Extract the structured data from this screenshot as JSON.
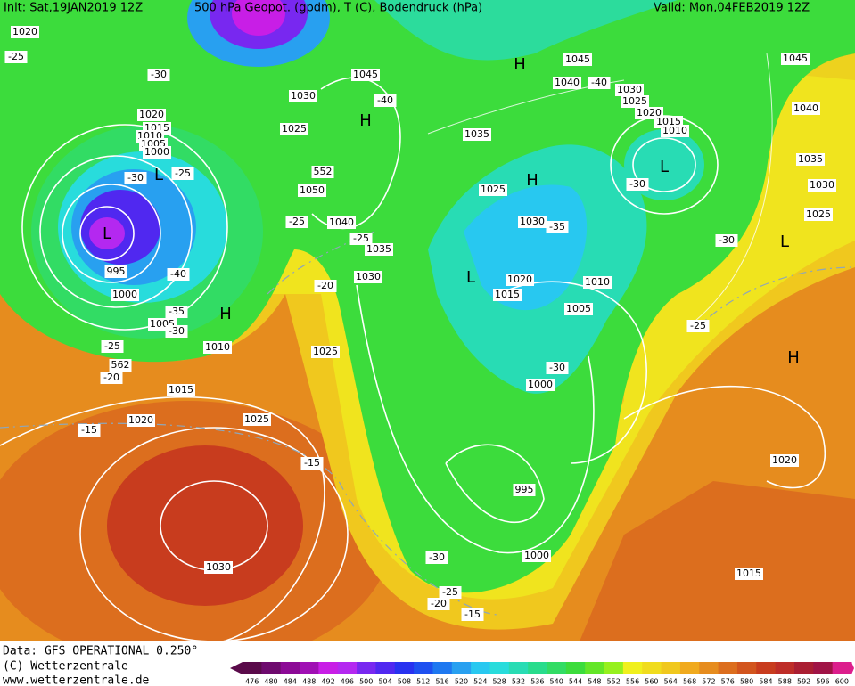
{
  "header": {
    "init": "Init: Sat,19JAN2019 12Z",
    "title": "500 hPa Geopot. (gpdm), T (C), Bodendruck (hPa)",
    "valid": "Valid: Mon,04FEB2019 12Z"
  },
  "footer": {
    "data": "Data: GFS OPERATIONAL 0.250°",
    "copyright": "(C) Wetterzentrale",
    "url": "www.wetterzentrale.de"
  },
  "colorbar": {
    "values": [
      476,
      480,
      484,
      488,
      492,
      496,
      500,
      504,
      508,
      512,
      516,
      520,
      524,
      528,
      532,
      536,
      540,
      544,
      548,
      552,
      556,
      560,
      564,
      568,
      572,
      576,
      580,
      584,
      588,
      592,
      596,
      600
    ],
    "colors": [
      "#5a0a4a",
      "#6e0a6e",
      "#8c0a96",
      "#a010b4",
      "#c81ee6",
      "#b428f0",
      "#7828f0",
      "#5028f0",
      "#2832f0",
      "#1e50f0",
      "#1e78f0",
      "#28a0f0",
      "#28c8f0",
      "#28dcdc",
      "#28dcb4",
      "#28dc8c",
      "#32dc64",
      "#3cdc3c",
      "#64e628",
      "#96f01e",
      "#f0f01e",
      "#f0dc1e",
      "#f0c81e",
      "#f0aa1e",
      "#e68c1e",
      "#dc6e1e",
      "#d2551e",
      "#c83c1e",
      "#be2d28",
      "#aa1e32",
      "#a01446",
      "#dc1e8c"
    ]
  },
  "map": {
    "labels": [
      "1020",
      "-25",
      "-30",
      "1020",
      "1015",
      "1010",
      "1005",
      "1000",
      "L",
      "-30",
      "-25",
      "L",
      "995",
      "-40",
      "1000",
      "H",
      "-35",
      "1005",
      "-30",
      "1010",
      "-25",
      "-20",
      "1015",
      "1020",
      "-15",
      "1025",
      "-15",
      "1030",
      "1030",
      "1045",
      "H",
      "-40",
      "1025",
      "552",
      "1050",
      "-25",
      "1040",
      "-25",
      "1035",
      "-20",
      "1030",
      "1025",
      "H",
      "1045",
      "1040",
      "-40",
      "1030",
      "1025",
      "1020",
      "1015",
      "1010",
      "L",
      "-30",
      "1035",
      "H",
      "1025",
      "1030",
      "-35",
      "L",
      "1020",
      "1015",
      "1010",
      "1005",
      "-30",
      "1000",
      "995",
      "-30",
      "1000",
      "-25",
      "-20",
      "-15",
      "1045",
      "1040",
      "1035",
      "1030",
      "1025",
      "-30",
      "L",
      "-25",
      "H",
      "1020",
      "1015",
      "562"
    ]
  }
}
